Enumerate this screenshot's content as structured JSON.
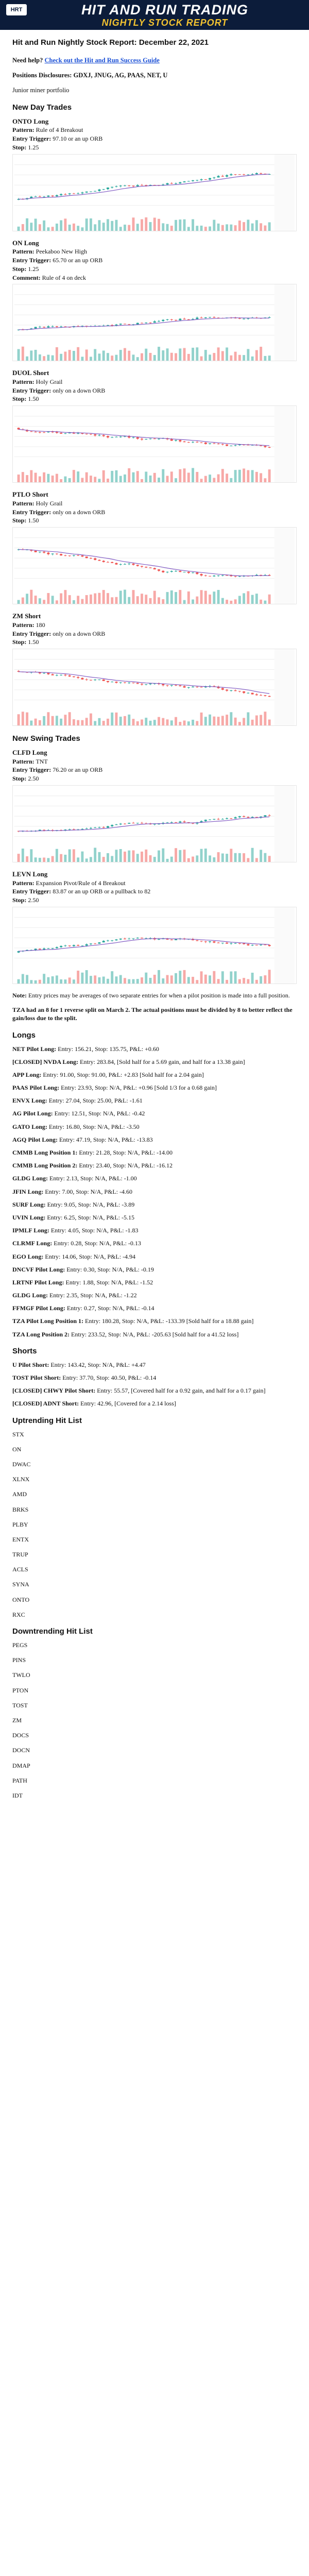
{
  "banner": {
    "logo": "HRT",
    "line1": "HIT AND RUN TRADING",
    "line2": "NIGHTLY STOCK REPORT"
  },
  "title": "Hit and Run Nightly Stock Report: December 22, 2021",
  "help": {
    "prefix": "Need help?",
    "link": "Check out the Hit and Run Success Guide"
  },
  "positions": "Positions Disclosures: GDXJ, JNUG, AG, PAAS, NET, U",
  "junior": "Junior miner portfolio",
  "new_day_trades_heading": "New Day Trades",
  "new_swing_trades_heading": "New Swing Trades",
  "day_trades": [
    {
      "name": "ONTO Long",
      "lines": [
        [
          "Pattern:",
          "Rule of 4 Breakout"
        ],
        [
          "Entry Trigger:",
          "97.10 or an up ORB"
        ],
        [
          "Stop:",
          "1.25"
        ]
      ],
      "trend": "up"
    },
    {
      "name": "ON Long",
      "lines": [
        [
          "Pattern:",
          "Peekaboo New High"
        ],
        [
          "Entry Trigger:",
          "65.70 or an up ORB"
        ],
        [
          "Stop:",
          "1.25"
        ],
        [
          "Comment:",
          "Rule of 4 on deck"
        ]
      ],
      "trend": "up"
    },
    {
      "name": "DUOL Short",
      "lines": [
        [
          "Pattern:",
          "Holy Grail"
        ],
        [
          "Entry Trigger:",
          "only on a down ORB"
        ],
        [
          "Stop:",
          "1.50"
        ]
      ],
      "trend": "down"
    },
    {
      "name": "PTLO Short",
      "lines": [
        [
          "Pattern:",
          "Holy Grail"
        ],
        [
          "Entry Trigger:",
          "only on a down ORB"
        ],
        [
          "Stop:",
          "1.50"
        ]
      ],
      "trend": "down"
    },
    {
      "name": "ZM Short",
      "lines": [
        [
          "Pattern:",
          "180"
        ],
        [
          "Entry Trigger:",
          "only on a down ORB"
        ],
        [
          "Stop:",
          "1.50"
        ]
      ],
      "trend": "down"
    }
  ],
  "swing_trades": [
    {
      "name": "CLFD Long",
      "lines": [
        [
          "Pattern:",
          "TNT"
        ],
        [
          "Entry Trigger:",
          "76.20 or an up ORB"
        ],
        [
          "Stop:",
          "2.50"
        ]
      ],
      "trend": "up"
    },
    {
      "name": "LEVN Long",
      "lines": [
        [
          "Pattern:",
          "Expansion Pivot/Rule of 4 Breakout"
        ],
        [
          "Entry Trigger:",
          "83.87 or an up ORB or a pullback to 82"
        ],
        [
          "Stop:",
          "2.50"
        ]
      ],
      "trend": "mixed"
    }
  ],
  "note": {
    "bold": "Note:",
    "text": "Entry prices may be averages of two separate entries for when a pilot position is made into a full position."
  },
  "tza_note": "TZA had an 8 for 1 reverse split on March 2. The actual positions must be divided by 8 to better reflect the gain/loss due to the split.",
  "longs_heading": "Longs",
  "longs": [
    [
      "NET Pilot Long:",
      "Entry: 156.21, Stop: 135.75, P&L: +0.60"
    ],
    [
      "[CLOSED] NVDA Long:",
      "Entry: 283.84, [Sold half for a 5.69 gain, and half for a 13.38 gain]"
    ],
    [
      "APP Long:",
      "Entry: 91.00, Stop: 91.00, P&L: +2.83 [Sold half for a 2.04 gain]"
    ],
    [
      "PAAS Pilot Long:",
      "Entry: 23.93, Stop: N/A, P&L: +0.96 [Sold 1/3 for a 0.68 gain]"
    ],
    [
      "ENVX Long:",
      "Entry: 27.04, Stop: 25.00, P&L: -1.61"
    ],
    [
      "AG Pilot Long:",
      "Entry: 12.51, Stop: N/A, P&L: -0.42"
    ],
    [
      "GATO Long:",
      "Entry: 16.80, Stop: N/A, P&L: -3.50"
    ],
    [
      "AGQ Pilot Long:",
      "Entry: 47.19, Stop: N/A, P&L: -13.83"
    ],
    [
      "CMMB Long Position 1:",
      "Entry: 21.28, Stop: N/A, P&L: -14.00"
    ],
    [
      "CMMB Long Position 2:",
      "Entry: 23.40, Stop: N/A, P&L: -16.12"
    ],
    [
      "GLDG Long:",
      "Entry: 2.13, Stop: N/A, P&L: -1.00"
    ],
    [
      "JFIN Long:",
      "Entry: 7.00, Stop: N/A, P&L: -4.60"
    ],
    [
      "SURF Long:",
      "Entry: 9.05, Stop: N/A, P&L: -3.89"
    ],
    [
      "UVIN Long:",
      "Entry: 6.25, Stop: N/A, P&L: -5.15"
    ],
    [
      "IPMLF Long:",
      "Entry: 4.05, Stop: N/A, P&L: -1.83"
    ],
    [
      "CLRMF Long:",
      "Entry: 0.28, Stop: N/A, P&L: -0.13"
    ],
    [
      "EGO Long:",
      "Entry: 14.06, Stop: N/A, P&L: -4.94"
    ],
    [
      "DNCVF Pilot Long:",
      "Entry: 0.30, Stop: N/A, P&L: -0.19"
    ],
    [
      "LRTNF Pilot Long:",
      "Entry: 1.88, Stop: N/A, P&L: -1.52"
    ],
    [
      "GLDG Long:",
      "Entry: 2.35, Stop: N/A, P&L: -1.22"
    ],
    [
      "FFMGF Pilot Long:",
      "Entry: 0.27, Stop: N/A, P&L: -0.14"
    ],
    [
      "TZA Pilot Long Position 1:",
      "Entry: 180.28, Stop: N/A, P&L: -133.39 [Sold half for a 18.88 gain]"
    ],
    [
      "TZA Long Position 2:",
      "Entry: 233.52, Stop: N/A, P&L: -205.63 [Sold half for a 41.52 loss]"
    ]
  ],
  "shorts_heading": "Shorts",
  "shorts": [
    [
      "U Pilot Short:",
      "Entry: 143.42, Stop: N/A, P&L: +4.47"
    ],
    [
      "TOST Pilot Short:",
      "Entry: 37.70, Stop: 40.50, P&L: -0.14"
    ],
    [
      "[CLOSED] CHWY Pilot Short:",
      "Entry: 55.57, [Covered half for a 0.92 gain, and half for a 0.17 gain]"
    ],
    [
      "[CLOSED] ADNT Short:",
      "Entry: 42.96, [Covered for a 2.14 loss]"
    ]
  ],
  "uptrending_heading": "Uptrending Hit List",
  "uptrending": [
    "STX",
    "ON",
    "DWAC",
    "XLNX",
    "AMD",
    "BRKS",
    "PLBY",
    "ENTX",
    "TRUP",
    "ACLS",
    "SYNA",
    "ONTO",
    "RXC"
  ],
  "downtrending_heading": "Downtrending Hit List",
  "downtrending": [
    "PEGS",
    "PINS",
    "TWLO",
    "PTON",
    "TOST",
    "ZM",
    "DOCS",
    "DOCN",
    "DMAP",
    "PATH",
    "IDT"
  ]
}
